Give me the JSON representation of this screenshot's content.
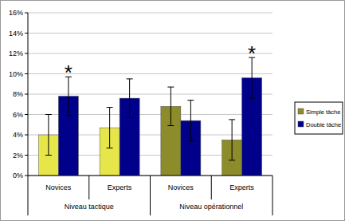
{
  "chart_data": {
    "type": "bar",
    "categories": [
      "Novices",
      "Experts",
      "Novices",
      "Experts"
    ],
    "groups": [
      {
        "label": "Niveau tactique",
        "count": 2
      },
      {
        "label": "Niveau opérationnel",
        "count": 2
      }
    ],
    "series": [
      {
        "name": "Simple tâche",
        "color": "#8c8c2a",
        "colors": [
          "#e6e64a",
          "#e6e64a",
          "#8c8c2a",
          "#8c8c2a"
        ],
        "values": [
          4.0,
          4.7,
          6.8,
          3.5
        ],
        "errors": [
          2.0,
          2.0,
          1.9,
          2.0
        ]
      },
      {
        "name": "Double tâche",
        "color": "#00008b",
        "values": [
          7.8,
          7.6,
          5.4,
          9.6
        ],
        "errors": [
          1.9,
          1.9,
          2.0,
          2.0
        ]
      }
    ],
    "annotations": [
      {
        "text": "*",
        "series": 1,
        "index": 0
      },
      {
        "text": "*",
        "series": 1,
        "index": 3
      }
    ],
    "ylim": [
      0,
      16
    ],
    "yticks": [
      {
        "value": 0,
        "label": "0%"
      },
      {
        "value": 2,
        "label": "2%"
      },
      {
        "value": 4,
        "label": "4%"
      },
      {
        "value": 6,
        "label": "6%"
      },
      {
        "value": 8,
        "label": "8%"
      },
      {
        "value": 10,
        "label": "10%"
      },
      {
        "value": 12,
        "label": "12%"
      },
      {
        "value": 14,
        "label": "14%"
      },
      {
        "value": 16,
        "label": "16%"
      }
    ],
    "grid": true,
    "legend": "right"
  }
}
